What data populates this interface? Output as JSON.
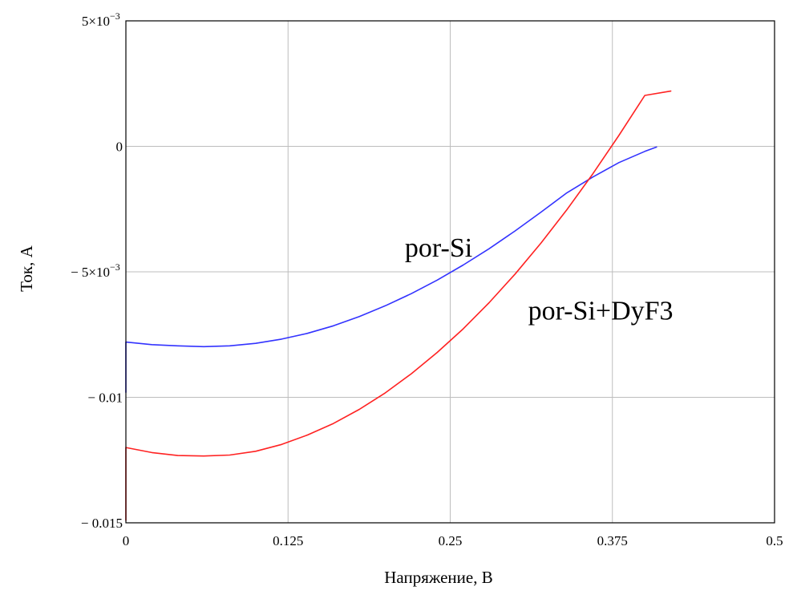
{
  "chart_data": {
    "type": "line",
    "title": "",
    "xlabel": "Напряжение, В",
    "ylabel": "Ток, А",
    "xlim": [
      0,
      0.5
    ],
    "ylim": [
      -0.015,
      0.005
    ],
    "grid": true,
    "x_ticks": [
      {
        "value": 0,
        "label": "0"
      },
      {
        "value": 0.125,
        "label": "0.125"
      },
      {
        "value": 0.25,
        "label": "0.25"
      },
      {
        "value": 0.375,
        "label": "0.375"
      },
      {
        "value": 0.5,
        "label": "0.5"
      }
    ],
    "y_ticks": [
      {
        "value": 0.005,
        "label": "5×10",
        "exp": "−3"
      },
      {
        "value": 0,
        "label": "0",
        "exp": ""
      },
      {
        "value": -0.005,
        "label": "− 5×10",
        "exp": "−3"
      },
      {
        "value": -0.01,
        "label": "− 0.01",
        "exp": ""
      },
      {
        "value": -0.015,
        "label": "− 0.015",
        "exp": ""
      }
    ],
    "series": [
      {
        "name": "por-Si",
        "color": "#3333ff",
        "x": [
          0,
          0.0,
          0.0,
          0.02,
          0.04,
          0.06,
          0.08,
          0.1,
          0.12,
          0.14,
          0.16,
          0.18,
          0.2,
          0.22,
          0.24,
          0.26,
          0.28,
          0.3,
          0.32,
          0.34,
          0.36,
          0.38,
          0.4,
          0.409
        ],
        "y": [
          -0.0098,
          -0.0089,
          -0.0078,
          -0.0079,
          -0.00795,
          -0.00798,
          -0.00795,
          -0.00785,
          -0.00768,
          -0.00745,
          -0.00715,
          -0.00678,
          -0.00635,
          -0.00587,
          -0.00533,
          -0.00473,
          -0.00408,
          -0.00337,
          -0.00262,
          -0.00185,
          -0.00122,
          -0.00065,
          -0.0002,
          -3e-05
        ]
      },
      {
        "name": "por-Si+DyF3",
        "color": "#ff2222",
        "x": [
          0,
          0.0,
          0.0,
          0.02,
          0.04,
          0.06,
          0.08,
          0.1,
          0.12,
          0.14,
          0.16,
          0.18,
          0.2,
          0.22,
          0.24,
          0.26,
          0.28,
          0.3,
          0.32,
          0.34,
          0.36,
          0.38,
          0.4,
          0.42
        ],
        "y": [
          -0.0149,
          -0.0133,
          -0.012,
          -0.0122,
          -0.01232,
          -0.01234,
          -0.0123,
          -0.01215,
          -0.01188,
          -0.0115,
          -0.01104,
          -0.01048,
          -0.00982,
          -0.00906,
          -0.00821,
          -0.00727,
          -0.00623,
          -0.00509,
          -0.00385,
          -0.00252,
          -0.00109,
          0.00043,
          0.00203,
          0.0022
        ]
      }
    ],
    "annotations": [
      {
        "series": "por-Si",
        "text": "por-Si",
        "x": 0.215,
        "y": -0.0044
      },
      {
        "series": "por-Si+DyF3",
        "text": "por-Si+DyF3",
        "x": 0.31,
        "y": -0.0069
      }
    ]
  }
}
